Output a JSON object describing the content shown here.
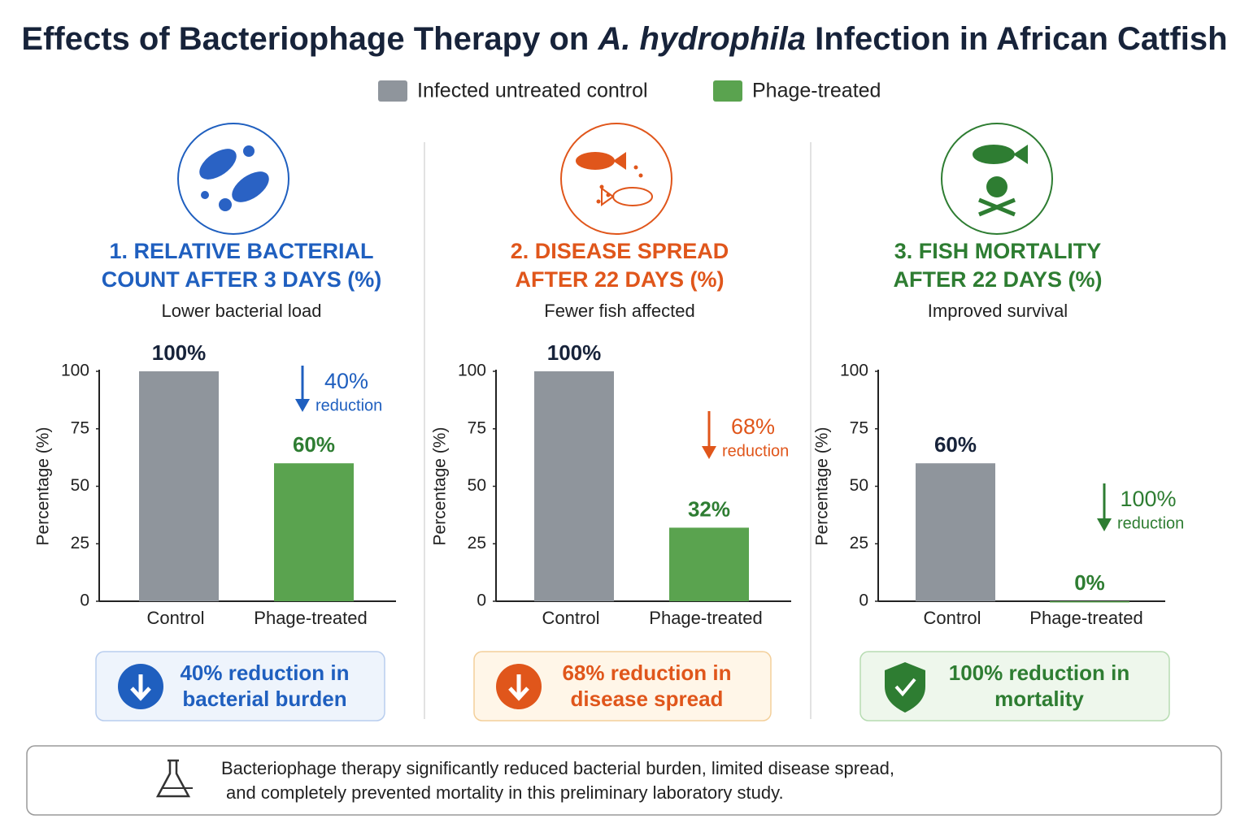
{
  "title_parts": [
    "Effects of Bacteriophage Therapy on",
    "A. hydrophila",
    "Infection in African Catfish"
  ],
  "legend": [
    {
      "name": "Infected untreated control",
      "color": "#8f959c"
    },
    {
      "name": "Phage-treated",
      "color": "#5aa34f"
    }
  ],
  "chart_data": [
    {
      "type": "bar",
      "title": [
        "1. RELATIVE BACTERIAL",
        "COUNT AFTER 3 DAYS (%)"
      ],
      "subtitle": "Lower bacterial load",
      "title_color": "#1f5fbf",
      "ylabel": "Percentage (%)",
      "categories": [
        "Control",
        "Phage-treated"
      ],
      "values": [
        100,
        60
      ],
      "value_labels": [
        "100%",
        "60%"
      ],
      "value_label_colors": [
        "#17233a",
        "#2e7d32"
      ],
      "colors": [
        "#8f959c",
        "#5aa34f"
      ],
      "ylim": [
        0,
        100
      ],
      "yticks": [
        0,
        25,
        50,
        75,
        100
      ],
      "annotation": [
        "40%",
        "reduction"
      ],
      "callout": [
        "40% reduction in",
        "bacterial burden"
      ]
    },
    {
      "type": "bar",
      "title": [
        "2. DISEASE SPREAD",
        "AFTER 22 DAYS (%)"
      ],
      "subtitle": "Fewer fish affected",
      "title_color": "#e0561b",
      "ylabel": "Percentage (%)",
      "categories": [
        "Control",
        "Phage-treated"
      ],
      "values": [
        100,
        32
      ],
      "value_labels": [
        "100%",
        "32%"
      ],
      "value_label_colors": [
        "#17233a",
        "#2e7d32"
      ],
      "colors": [
        "#8f959c",
        "#5aa34f"
      ],
      "ylim": [
        0,
        100
      ],
      "yticks": [
        0,
        25,
        50,
        75,
        100
      ],
      "annotation": [
        "68%",
        "reduction"
      ],
      "callout": [
        "68% reduction in",
        "disease spread"
      ]
    },
    {
      "type": "bar",
      "title": [
        "3. FISH MORTALITY",
        "AFTER 22 DAYS (%)"
      ],
      "subtitle": "Improved survival",
      "title_color": "#2e7d32",
      "ylabel": "Percentage (%)",
      "categories": [
        "Control",
        "Phage-treated"
      ],
      "values": [
        60,
        0
      ],
      "value_labels": [
        "60%",
        "0%"
      ],
      "value_label_colors": [
        "#17233a",
        "#2e7d32"
      ],
      "colors": [
        "#8f959c",
        "#5aa34f"
      ],
      "ylim": [
        0,
        100
      ],
      "yticks": [
        0,
        25,
        50,
        75,
        100
      ],
      "annotation": [
        "100%",
        "reduction"
      ],
      "callout": [
        "100% reduction in",
        "mortality"
      ]
    }
  ],
  "footnote": [
    "Bacteriophage therapy significantly reduced bacterial burden, limited disease spread,",
    "and completely prevented mortality in this preliminary laboratory study."
  ]
}
